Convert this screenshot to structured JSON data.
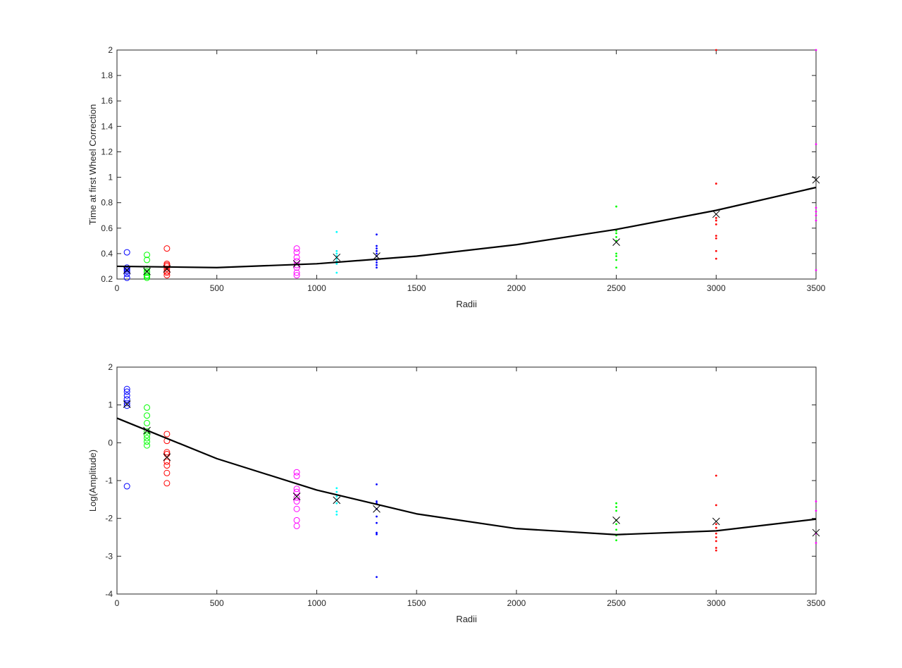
{
  "chart_data": [
    {
      "type": "scatter",
      "xlabel": "Radii",
      "ylabel": "Time at first Wheel Correction",
      "xlim": [
        0,
        3500
      ],
      "ylim": [
        0.2,
        2
      ],
      "xticks": [
        0,
        500,
        1000,
        1500,
        2000,
        2500,
        3000,
        3500
      ],
      "yticks": [
        0.2,
        0.4,
        0.6,
        0.8,
        1,
        1.2,
        1.4,
        1.6,
        1.8,
        2
      ],
      "grid": false,
      "series": [
        {
          "marker": "circle",
          "color": "#0000ff",
          "x": 50,
          "y": [
            0.21,
            0.24,
            0.26,
            0.27,
            0.28,
            0.29,
            0.41
          ]
        },
        {
          "marker": "circle",
          "color": "#00ff00",
          "x": 150,
          "y": [
            0.21,
            0.22,
            0.23,
            0.25,
            0.26,
            0.28,
            0.35,
            0.39
          ]
        },
        {
          "marker": "circle",
          "color": "#ff0000",
          "x": 250,
          "y": [
            0.23,
            0.25,
            0.26,
            0.28,
            0.3,
            0.31,
            0.32,
            0.44
          ]
        },
        {
          "marker": "circle",
          "color": "#ff00ff",
          "x": 900,
          "y": [
            0.23,
            0.25,
            0.29,
            0.31,
            0.34,
            0.37,
            0.41,
            0.44
          ]
        },
        {
          "marker": "dot",
          "color": "#00ffff",
          "x": 1100,
          "y": [
            0.25,
            0.32,
            0.34,
            0.36,
            0.38,
            0.4,
            0.42,
            0.57
          ]
        },
        {
          "marker": "dot",
          "color": "#0000ff",
          "x": 1300,
          "y": [
            0.29,
            0.31,
            0.33,
            0.35,
            0.38,
            0.4,
            0.42,
            0.44,
            0.46,
            0.55
          ]
        },
        {
          "marker": "dot",
          "color": "#00ff00",
          "x": 2500,
          "y": [
            0.29,
            0.35,
            0.38,
            0.4,
            0.5,
            0.53,
            0.56,
            0.58,
            0.77
          ]
        },
        {
          "marker": "dot",
          "color": "#ff0000",
          "x": 3000,
          "y": [
            0.36,
            0.42,
            0.52,
            0.54,
            0.63,
            0.66,
            0.68,
            0.95,
            2.0
          ]
        },
        {
          "marker": "dot",
          "color": "#ff00ff",
          "x": 3500,
          "y": [
            0.27,
            0.66,
            0.7,
            0.73,
            0.76,
            1.26,
            2.0
          ]
        }
      ],
      "means": {
        "marker": "x",
        "color": "#000000",
        "x": [
          50,
          150,
          250,
          900,
          1100,
          1300,
          2500,
          3000,
          3500
        ],
        "y": [
          0.27,
          0.26,
          0.28,
          0.32,
          0.37,
          0.38,
          0.49,
          0.71,
          0.98
        ]
      },
      "fit": {
        "color": "#000000",
        "x": [
          0,
          500,
          1000,
          1500,
          2000,
          2500,
          3000,
          3500
        ],
        "y": [
          0.3,
          0.29,
          0.32,
          0.38,
          0.47,
          0.59,
          0.74,
          0.92
        ]
      }
    },
    {
      "type": "scatter",
      "xlabel": "Radii",
      "ylabel": "Log(Amplitude)",
      "xlim": [
        0,
        3500
      ],
      "ylim": [
        -4,
        2
      ],
      "xticks": [
        0,
        500,
        1000,
        1500,
        2000,
        2500,
        3000,
        3500
      ],
      "yticks": [
        -4,
        -3,
        -2,
        -1,
        0,
        1,
        2
      ],
      "grid": false,
      "series": [
        {
          "marker": "circle",
          "color": "#0000ff",
          "x": 50,
          "y": [
            -1.15,
            0.98,
            1.05,
            1.15,
            1.25,
            1.35,
            1.42
          ]
        },
        {
          "marker": "circle",
          "color": "#00ff00",
          "x": 150,
          "y": [
            -0.07,
            0.03,
            0.12,
            0.2,
            0.3,
            0.52,
            0.72,
            0.93
          ]
        },
        {
          "marker": "circle",
          "color": "#ff0000",
          "x": 250,
          "y": [
            -1.07,
            -0.8,
            -0.6,
            -0.5,
            -0.3,
            -0.25,
            0.05,
            0.23
          ]
        },
        {
          "marker": "circle",
          "color": "#ff00ff",
          "x": 900,
          "y": [
            -2.2,
            -2.05,
            -1.75,
            -1.55,
            -1.45,
            -1.3,
            -1.22,
            -0.88,
            -0.78
          ]
        },
        {
          "marker": "dot",
          "color": "#00ffff",
          "x": 1100,
          "y": [
            -1.9,
            -1.82,
            -1.6,
            -1.5,
            -1.42,
            -1.3,
            -1.2
          ]
        },
        {
          "marker": "dot",
          "color": "#0000ff",
          "x": 1300,
          "y": [
            -3.55,
            -2.42,
            -2.38,
            -2.12,
            -1.95,
            -1.75,
            -1.6,
            -1.55,
            -1.1
          ]
        },
        {
          "marker": "dot",
          "color": "#00ff00",
          "x": 2500,
          "y": [
            -2.58,
            -2.45,
            -2.3,
            -2.15,
            -2.05,
            -1.8,
            -1.7,
            -1.6
          ]
        },
        {
          "marker": "dot",
          "color": "#ff0000",
          "x": 3000,
          "y": [
            -2.85,
            -2.78,
            -2.6,
            -2.5,
            -2.4,
            -2.25,
            -2.15,
            -1.65,
            -0.87
          ]
        },
        {
          "marker": "dot",
          "color": "#ff00ff",
          "x": 3500,
          "y": [
            -2.65,
            -2.4,
            -1.8,
            -1.55
          ]
        }
      ],
      "means": {
        "marker": "x",
        "color": "#000000",
        "x": [
          50,
          150,
          250,
          900,
          1100,
          1300,
          2500,
          3000,
          3500
        ],
        "y": [
          1.02,
          0.32,
          -0.38,
          -1.42,
          -1.52,
          -1.75,
          -2.05,
          -2.08,
          -2.38
        ]
      },
      "fit": {
        "color": "#000000",
        "x": [
          0,
          500,
          1000,
          1500,
          2000,
          2500,
          3000,
          3500
        ],
        "y": [
          0.65,
          -0.42,
          -1.25,
          -1.88,
          -2.27,
          -2.43,
          -2.33,
          -2.02
        ]
      }
    }
  ]
}
